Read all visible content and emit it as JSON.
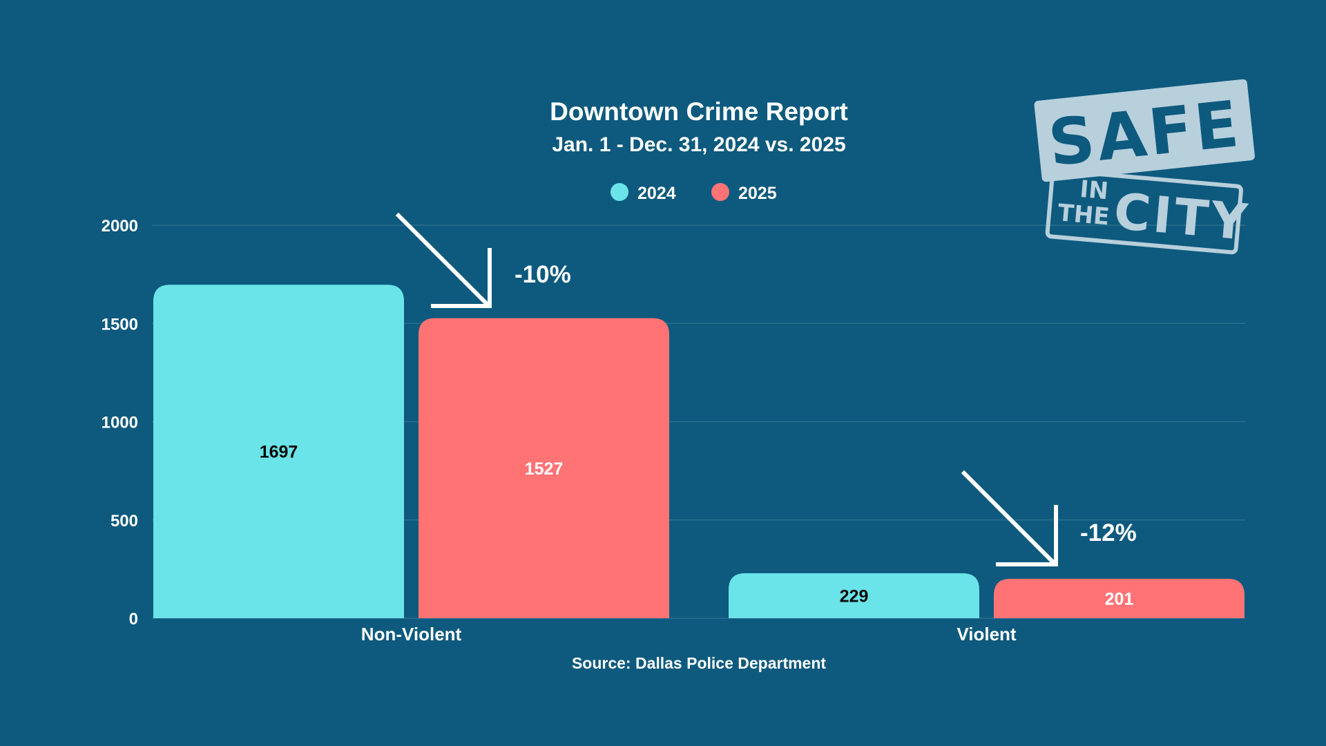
{
  "colors": {
    "background": "#0d5a7e",
    "series_2024": "#6ae4e8",
    "series_2025": "#ff7375",
    "label_on_2024": "#0a0a0a",
    "label_on_2025": "#ffffff",
    "logo": "#b8cfdc"
  },
  "chart_data": {
    "type": "bar",
    "title": "Downtown Crime Report",
    "subtitle": "Jan. 1 - Dec. 31, 2024 vs. 2025",
    "categories": [
      "Non-Violent",
      "Violent"
    ],
    "series": [
      {
        "name": "2024",
        "values": [
          1697,
          229
        ]
      },
      {
        "name": "2025",
        "values": [
          1527,
          201
        ]
      }
    ],
    "ylim": [
      0,
      2000
    ],
    "yticks": [
      0,
      500,
      1000,
      1500,
      2000
    ],
    "ytick_labels": [
      "0",
      "500",
      "1000",
      "1500",
      "2000"
    ],
    "grid": true,
    "legend_position": "top-center",
    "annotations": [
      {
        "text": "-10%",
        "category": "Non-Violent",
        "icon": "arrow-down-right-icon"
      },
      {
        "text": "-12%",
        "category": "Violent",
        "icon": "arrow-down-right-icon"
      }
    ],
    "source": "Source: Dallas Police Department"
  },
  "logo": {
    "line1": "SAFE",
    "line2a": "IN",
    "line2b": "THE",
    "line3": "CITY"
  }
}
